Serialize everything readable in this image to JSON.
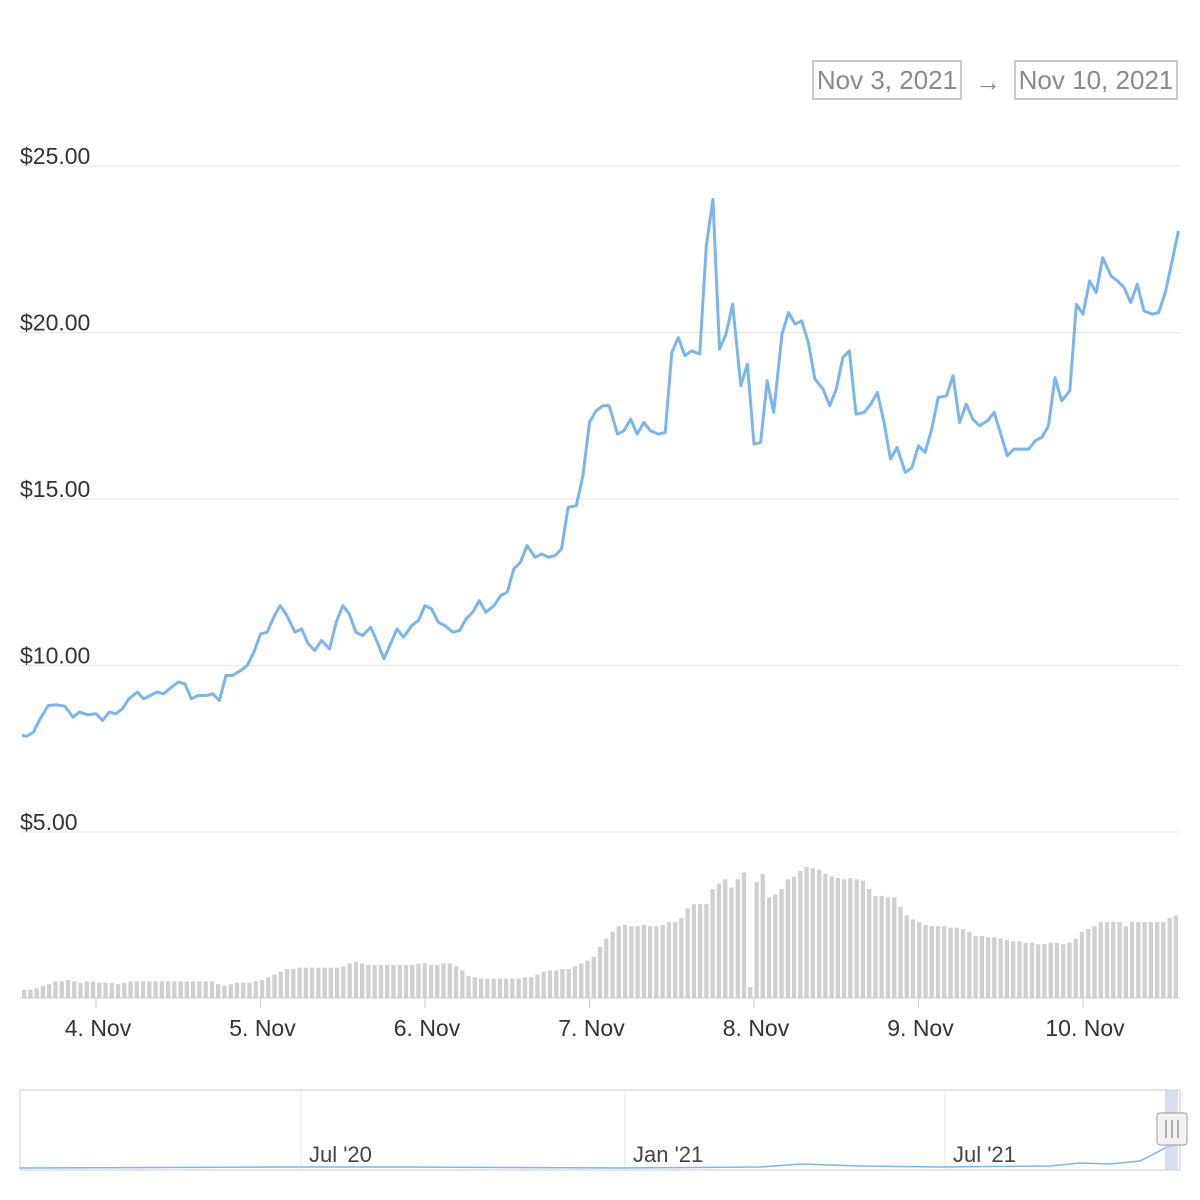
{
  "date_range": {
    "from": "Nov 3, 2021",
    "arrow": "→",
    "to": "Nov 10, 2021"
  },
  "colors": {
    "line": "#7cb5ec",
    "volume": "#d0d0d0",
    "grid": "#e6e6e6",
    "navigator_mask": "#ccd6eb"
  },
  "chart_data": {
    "type": "line",
    "y_ticks": [
      "$25.00",
      "$20.00",
      "$15.00",
      "$10.00",
      "$5.00"
    ],
    "y_tick_values": [
      25,
      20,
      15,
      10,
      5
    ],
    "ylim": [
      5,
      25
    ],
    "x_ticks": [
      "4. Nov",
      "5. Nov",
      "6. Nov",
      "7. Nov",
      "8. Nov",
      "9. Nov",
      "10. Nov"
    ],
    "x_tick_values": [
      4,
      5,
      6,
      7,
      8,
      9,
      10
    ],
    "xlim": [
      3.55,
      10.6
    ],
    "series": [
      {
        "values": [
          [
            3.55,
            7.9
          ],
          [
            3.58,
            7.88
          ],
          [
            3.62,
            8.0
          ],
          [
            3.66,
            8.4
          ],
          [
            3.71,
            8.8
          ],
          [
            3.76,
            8.82
          ],
          [
            3.81,
            8.78
          ],
          [
            3.86,
            8.45
          ],
          [
            3.9,
            8.6
          ],
          [
            3.95,
            8.52
          ],
          [
            4.0,
            8.55
          ],
          [
            4.04,
            8.35
          ],
          [
            4.08,
            8.6
          ],
          [
            4.12,
            8.55
          ],
          [
            4.16,
            8.7
          ],
          [
            4.2,
            9.0
          ],
          [
            4.25,
            9.2
          ],
          [
            4.29,
            9.0
          ],
          [
            4.33,
            9.1
          ],
          [
            4.37,
            9.2
          ],
          [
            4.41,
            9.15
          ],
          [
            4.46,
            9.35
          ],
          [
            4.5,
            9.5
          ],
          [
            4.54,
            9.45
          ],
          [
            4.58,
            9.0
          ],
          [
            4.62,
            9.1
          ],
          [
            4.67,
            9.1
          ],
          [
            4.71,
            9.15
          ],
          [
            4.75,
            8.95
          ],
          [
            4.79,
            9.7
          ],
          [
            4.83,
            9.7
          ],
          [
            4.88,
            9.85
          ],
          [
            4.92,
            10.0
          ],
          [
            4.96,
            10.4
          ],
          [
            5.0,
            10.95
          ],
          [
            5.04,
            11.0
          ],
          [
            5.08,
            11.45
          ],
          [
            5.12,
            11.8
          ],
          [
            5.16,
            11.5
          ],
          [
            5.21,
            11.0
          ],
          [
            5.25,
            11.1
          ],
          [
            5.29,
            10.65
          ],
          [
            5.33,
            10.45
          ],
          [
            5.37,
            10.75
          ],
          [
            5.42,
            10.5
          ],
          [
            5.46,
            11.3
          ],
          [
            5.5,
            11.8
          ],
          [
            5.54,
            11.55
          ],
          [
            5.58,
            11.0
          ],
          [
            5.62,
            10.9
          ],
          [
            5.67,
            11.15
          ],
          [
            5.71,
            10.7
          ],
          [
            5.75,
            10.2
          ],
          [
            5.79,
            10.65
          ],
          [
            5.83,
            11.1
          ],
          [
            5.87,
            10.85
          ],
          [
            5.92,
            11.2
          ],
          [
            5.96,
            11.35
          ],
          [
            6.0,
            11.8
          ],
          [
            6.04,
            11.7
          ],
          [
            6.08,
            11.3
          ],
          [
            6.12,
            11.2
          ],
          [
            6.17,
            11.0
          ],
          [
            6.21,
            11.05
          ],
          [
            6.25,
            11.4
          ],
          [
            6.29,
            11.6
          ],
          [
            6.33,
            11.95
          ],
          [
            6.37,
            11.6
          ],
          [
            6.42,
            11.8
          ],
          [
            6.46,
            12.1
          ],
          [
            6.5,
            12.2
          ],
          [
            6.54,
            12.9
          ],
          [
            6.58,
            13.1
          ],
          [
            6.62,
            13.6
          ],
          [
            6.67,
            13.25
          ],
          [
            6.71,
            13.35
          ],
          [
            6.75,
            13.25
          ],
          [
            6.79,
            13.3
          ],
          [
            6.83,
            13.5
          ],
          [
            6.87,
            14.75
          ],
          [
            6.92,
            14.8
          ],
          [
            6.96,
            15.7
          ],
          [
            7.0,
            17.3
          ],
          [
            7.04,
            17.65
          ],
          [
            7.08,
            17.8
          ],
          [
            7.12,
            17.8
          ],
          [
            7.17,
            16.95
          ],
          [
            7.21,
            17.05
          ],
          [
            7.25,
            17.4
          ],
          [
            7.29,
            16.95
          ],
          [
            7.33,
            17.3
          ],
          [
            7.37,
            17.05
          ],
          [
            7.42,
            16.95
          ],
          [
            7.46,
            17.0
          ],
          [
            7.5,
            19.4
          ],
          [
            7.54,
            19.85
          ],
          [
            7.58,
            19.3
          ],
          [
            7.62,
            19.45
          ],
          [
            7.67,
            19.35
          ],
          [
            7.71,
            22.6
          ],
          [
            7.75,
            24.0
          ],
          [
            7.79,
            19.5
          ],
          [
            7.83,
            19.95
          ],
          [
            7.87,
            20.85
          ],
          [
            7.92,
            18.4
          ],
          [
            7.96,
            19.05
          ],
          [
            8.0,
            16.65
          ],
          [
            8.04,
            16.7
          ],
          [
            8.08,
            18.55
          ],
          [
            8.12,
            17.6
          ],
          [
            8.17,
            19.95
          ],
          [
            8.21,
            20.6
          ],
          [
            8.25,
            20.25
          ],
          [
            8.29,
            20.35
          ],
          [
            8.33,
            19.7
          ],
          [
            8.37,
            18.6
          ],
          [
            8.42,
            18.3
          ],
          [
            8.46,
            17.8
          ],
          [
            8.5,
            18.3
          ],
          [
            8.54,
            19.25
          ],
          [
            8.58,
            19.45
          ],
          [
            8.62,
            17.55
          ],
          [
            8.67,
            17.6
          ],
          [
            8.71,
            17.85
          ],
          [
            8.75,
            18.2
          ],
          [
            8.79,
            17.3
          ],
          [
            8.83,
            16.2
          ],
          [
            8.87,
            16.55
          ],
          [
            8.92,
            15.8
          ],
          [
            8.96,
            15.95
          ],
          [
            9.0,
            16.6
          ],
          [
            9.04,
            16.4
          ],
          [
            9.08,
            17.1
          ],
          [
            9.12,
            18.05
          ],
          [
            9.17,
            18.1
          ],
          [
            9.21,
            18.7
          ],
          [
            9.25,
            17.3
          ],
          [
            9.29,
            17.85
          ],
          [
            9.33,
            17.4
          ],
          [
            9.37,
            17.2
          ],
          [
            9.42,
            17.35
          ],
          [
            9.46,
            17.6
          ],
          [
            9.5,
            16.95
          ],
          [
            9.54,
            16.3
          ],
          [
            9.58,
            16.5
          ],
          [
            9.62,
            16.5
          ],
          [
            9.67,
            16.5
          ],
          [
            9.71,
            16.75
          ],
          [
            9.75,
            16.85
          ],
          [
            9.79,
            17.2
          ],
          [
            9.83,
            18.65
          ],
          [
            9.87,
            17.95
          ],
          [
            9.92,
            18.25
          ],
          [
            9.96,
            20.85
          ],
          [
            10.0,
            20.55
          ],
          [
            10.04,
            21.55
          ],
          [
            10.08,
            21.2
          ],
          [
            10.12,
            22.25
          ],
          [
            10.17,
            21.7
          ],
          [
            10.21,
            21.55
          ],
          [
            10.25,
            21.35
          ],
          [
            10.29,
            20.9
          ],
          [
            10.33,
            21.45
          ],
          [
            10.37,
            20.65
          ],
          [
            10.42,
            20.55
          ],
          [
            10.46,
            20.6
          ],
          [
            10.5,
            21.2
          ],
          [
            10.54,
            22.1
          ],
          [
            10.58,
            23.05
          ]
        ]
      }
    ],
    "volume_heights": [
      0.06,
      0.06,
      0.07,
      0.09,
      0.1,
      0.12,
      0.12,
      0.13,
      0.12,
      0.11,
      0.12,
      0.12,
      0.11,
      0.11,
      0.11,
      0.1,
      0.11,
      0.12,
      0.12,
      0.12,
      0.12,
      0.12,
      0.12,
      0.12,
      0.12,
      0.12,
      0.12,
      0.12,
      0.12,
      0.12,
      0.12,
      0.1,
      0.09,
      0.1,
      0.11,
      0.11,
      0.11,
      0.12,
      0.13,
      0.15,
      0.17,
      0.19,
      0.21,
      0.21,
      0.22,
      0.22,
      0.22,
      0.22,
      0.22,
      0.22,
      0.22,
      0.23,
      0.25,
      0.26,
      0.25,
      0.24,
      0.24,
      0.24,
      0.24,
      0.24,
      0.24,
      0.24,
      0.24,
      0.25,
      0.25,
      0.24,
      0.24,
      0.25,
      0.25,
      0.23,
      0.2,
      0.16,
      0.15,
      0.14,
      0.14,
      0.14,
      0.14,
      0.14,
      0.14,
      0.14,
      0.15,
      0.15,
      0.17,
      0.19,
      0.2,
      0.2,
      0.21,
      0.21,
      0.23,
      0.25,
      0.27,
      0.3,
      0.37,
      0.43,
      0.48,
      0.52,
      0.53,
      0.52,
      0.52,
      0.53,
      0.52,
      0.52,
      0.53,
      0.55,
      0.55,
      0.58,
      0.65,
      0.68,
      0.68,
      0.68,
      0.79,
      0.83,
      0.86,
      0.8,
      0.86,
      0.91,
      0.08,
      0.84,
      0.9,
      0.73,
      0.75,
      0.79,
      0.86,
      0.88,
      0.92,
      0.95,
      0.94,
      0.93,
      0.9,
      0.88,
      0.87,
      0.86,
      0.87,
      0.86,
      0.85,
      0.79,
      0.74,
      0.74,
      0.73,
      0.73,
      0.66,
      0.6,
      0.57,
      0.55,
      0.53,
      0.52,
      0.52,
      0.52,
      0.51,
      0.51,
      0.5,
      0.48,
      0.45,
      0.45,
      0.44,
      0.44,
      0.43,
      0.42,
      0.41,
      0.41,
      0.4,
      0.4,
      0.39,
      0.39,
      0.4,
      0.4,
      0.39,
      0.4,
      0.43,
      0.48,
      0.5,
      0.52,
      0.55,
      0.55,
      0.55,
      0.55,
      0.52,
      0.55,
      0.55,
      0.55,
      0.55,
      0.55,
      0.55,
      0.58,
      0.6
    ],
    "navigator": {
      "labels": [
        "Jul '20",
        "Jan '21",
        "Jul '21"
      ]
    }
  }
}
